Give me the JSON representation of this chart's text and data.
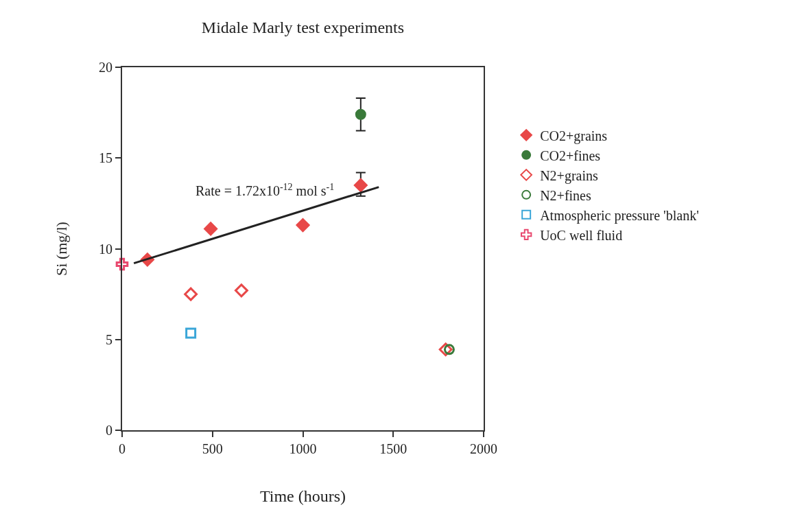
{
  "chart_data": {
    "type": "scatter",
    "title": "Midale Marly test experiments",
    "xlabel": "Time (hours)",
    "ylabel": "Si (mg/l)",
    "xlim": [
      0,
      2000
    ],
    "xticks": [
      0,
      500,
      1000,
      1500,
      2000
    ],
    "ylim": [
      0,
      20
    ],
    "yticks": [
      0,
      5,
      10,
      15,
      20
    ],
    "legend": "right",
    "annotations": [
      "Rate = 1.72x10$^{-12}$ mol s$^{-1}$"
    ],
    "series": [
      {
        "name": "CO2+grains",
        "color": "#e84848",
        "marker": "diamond",
        "x": [
          140,
          490,
          1000,
          1320
        ],
        "values": [
          9.4,
          11.1,
          11.3,
          13.5
        ],
        "errors": [
          null,
          null,
          null,
          [
            12.9,
            14.2
          ]
        ]
      },
      {
        "name": "CO2+fines",
        "color": "#3a7a3a",
        "marker": "circle",
        "x": [
          1320
        ],
        "values": [
          17.4
        ],
        "errors": [
          [
            16.5,
            18.3
          ]
        ]
      },
      {
        "name": "N2+grains",
        "color": "#e84848",
        "marker": "diamond",
        "x": [
          380,
          660,
          1790
        ],
        "values": [
          7.5,
          7.7,
          4.45
        ]
      },
      {
        "name": "N2+fines",
        "color": "#3a7a3a",
        "marker": "circle",
        "x": [
          1810
        ],
        "values": [
          4.45
        ]
      },
      {
        "name": "Atmospheric pressure 'blank'",
        "color": "#3aa6d8",
        "marker": "square",
        "x": [
          380
        ],
        "values": [
          5.35
        ]
      },
      {
        "name": "UoC well fluid",
        "color": "#e8486e",
        "marker": "cross",
        "x": [
          0
        ],
        "values": [
          9.15
        ]
      },
      {
        "type": "line",
        "color": "#222222",
        "marker": "none",
        "x": [
          65,
          1420
        ],
        "values": [
          9.2,
          13.4
        ]
      }
    ]
  }
}
